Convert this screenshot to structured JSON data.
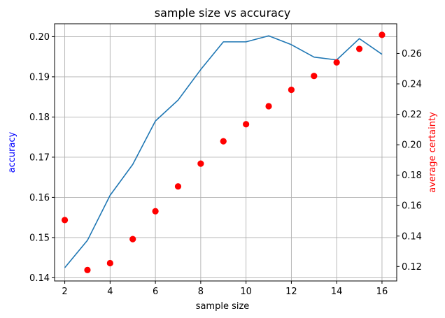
{
  "chart_data": {
    "type": "line",
    "title": "sample size vs accuracy",
    "xlabel": "sample size",
    "ylabel": "accuracy",
    "y2label": "average certainty",
    "xlim": [
      1.55,
      16.65
    ],
    "ylim": [
      0.1392,
      0.2032
    ],
    "y2lim": [
      0.1105,
      0.2795
    ],
    "x_ticks": [
      2,
      4,
      6,
      8,
      10,
      12,
      14,
      16
    ],
    "y_ticks": [
      0.14,
      0.15,
      0.16,
      0.17,
      0.18,
      0.19,
      0.2
    ],
    "y2_ticks": [
      0.12,
      0.14,
      0.16,
      0.18,
      0.2,
      0.22,
      0.24,
      0.26
    ],
    "grid": true,
    "series": [
      {
        "axis": "left",
        "style": "line",
        "color": "#1f77b4",
        "x": [
          2,
          3,
          4,
          5,
          6,
          7,
          8,
          9,
          10,
          11,
          12,
          13,
          14,
          15,
          16
        ],
        "values": [
          0.1425,
          0.1493,
          0.1605,
          0.1682,
          0.179,
          0.1842,
          0.1918,
          0.1987,
          0.1987,
          0.2002,
          0.198,
          0.1949,
          0.1942,
          0.1995,
          0.1956
        ]
      },
      {
        "axis": "right",
        "style": "scatter",
        "color": "#ff0000",
        "x": [
          2,
          3,
          4,
          5,
          6,
          7,
          8,
          9,
          10,
          11,
          12,
          13,
          14,
          15,
          16
        ],
        "values": [
          0.1505,
          0.1177,
          0.1222,
          0.138,
          0.1563,
          0.1726,
          0.1876,
          0.2023,
          0.2135,
          0.2253,
          0.2361,
          0.2452,
          0.2541,
          0.263,
          0.2722
        ]
      }
    ]
  },
  "colors": {
    "line": "#1f77b4",
    "markers": "#ff0000",
    "ylabel": "#0000ff",
    "y2label": "#ff0000"
  }
}
